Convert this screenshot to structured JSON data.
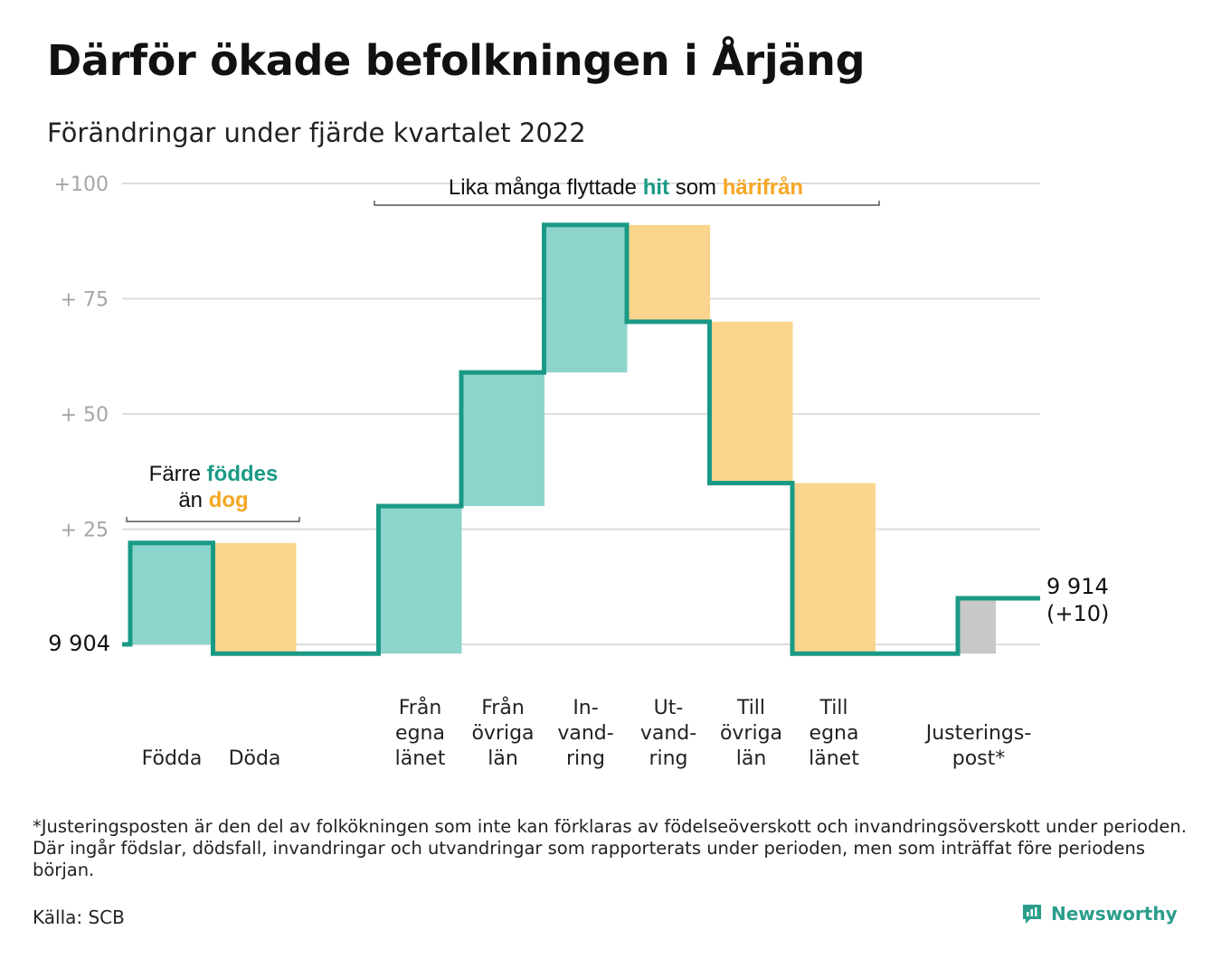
{
  "title": "Därför ökade befolkningen i Årjäng",
  "subtitle": "Förändringar under fjärde kvartalet 2022",
  "colors": {
    "inflow": "#8dd5cc",
    "outflow": "#fad58d",
    "adjust": "#c8c8c8",
    "line": "#1a9a86",
    "inflow_text": "#1a9a86",
    "outflow_text": "#f5a623",
    "grid": "#dddddd"
  },
  "chart_data": {
    "type": "waterfall",
    "title": "Därför ökade befolkningen i Årjäng",
    "subtitle": "Förändringar under fjärde kvartalet 2022",
    "start_value": 9904,
    "start_label": "9 904",
    "end_value": 9914,
    "end_label_line1": "9 914",
    "end_label_line2": "(+10)",
    "y_ticks": [
      {
        "value": 0,
        "label": ""
      },
      {
        "value": 25,
        "label": "+ 25"
      },
      {
        "value": 50,
        "label": "+ 50"
      },
      {
        "value": 75,
        "label": "+ 75"
      },
      {
        "value": 100,
        "label": "+100"
      }
    ],
    "ylim": [
      0,
      100
    ],
    "grid": true,
    "steps": [
      {
        "label": [
          "Födda"
        ],
        "change": 22,
        "kind": "in",
        "from": 0,
        "to": 22
      },
      {
        "label": [
          "Döda"
        ],
        "change": -24,
        "kind": "out",
        "from": 22,
        "to": -2
      },
      {
        "label": [],
        "change": 0,
        "kind": "gap",
        "from": -2,
        "to": -2
      },
      {
        "label": [
          "Från",
          "egna",
          "länet"
        ],
        "change": 32,
        "kind": "in",
        "from": -2,
        "to": 30
      },
      {
        "label": [
          "Från",
          "övriga",
          "län"
        ],
        "change": 29,
        "kind": "in",
        "from": 30,
        "to": 59
      },
      {
        "label": [
          "In-",
          "vand-",
          "ring"
        ],
        "change": 32,
        "kind": "in",
        "from": 59,
        "to": 91
      },
      {
        "label": [
          "Ut-",
          "vand-",
          "ring"
        ],
        "change": -21,
        "kind": "out",
        "from": 91,
        "to": 70
      },
      {
        "label": [
          "Till",
          "övriga",
          "län"
        ],
        "change": -35,
        "kind": "out",
        "from": 70,
        "to": 35
      },
      {
        "label": [
          "Till",
          "egna",
          "länet"
        ],
        "change": -37,
        "kind": "out",
        "from": 35,
        "to": -2
      },
      {
        "label": [],
        "change": 0,
        "kind": "gap",
        "from": -2,
        "to": -2
      },
      {
        "label": [
          "Justerings-",
          "post*"
        ],
        "change": 12,
        "kind": "adjust",
        "from": -2,
        "to": 10
      }
    ],
    "annotations": [
      {
        "parts": [
          [
            "Färre ",
            "plain"
          ],
          [
            "föddes",
            "in"
          ]
        ],
        "parts2": [
          [
            "än ",
            "plain"
          ],
          [
            "dog",
            "out"
          ]
        ]
      },
      {
        "parts": [
          [
            "Lika många flyttade ",
            "plain"
          ],
          [
            "hit",
            "in"
          ],
          [
            " som ",
            "plain"
          ],
          [
            "härifrån",
            "out"
          ]
        ]
      }
    ]
  },
  "footnote": "*Justeringsposten är den del av folkökningen som inte kan förklaras av födelseöverskott och invandringsöverskott under perioden. Där ingår födslar, dödsfall, invandringar och utvandringar som rapporterats under perioden, men som inträffat före periodens början.",
  "source": "Källa: SCB",
  "brand": {
    "name": "Newsworthy",
    "icon": "newsworthy-logo-icon"
  }
}
